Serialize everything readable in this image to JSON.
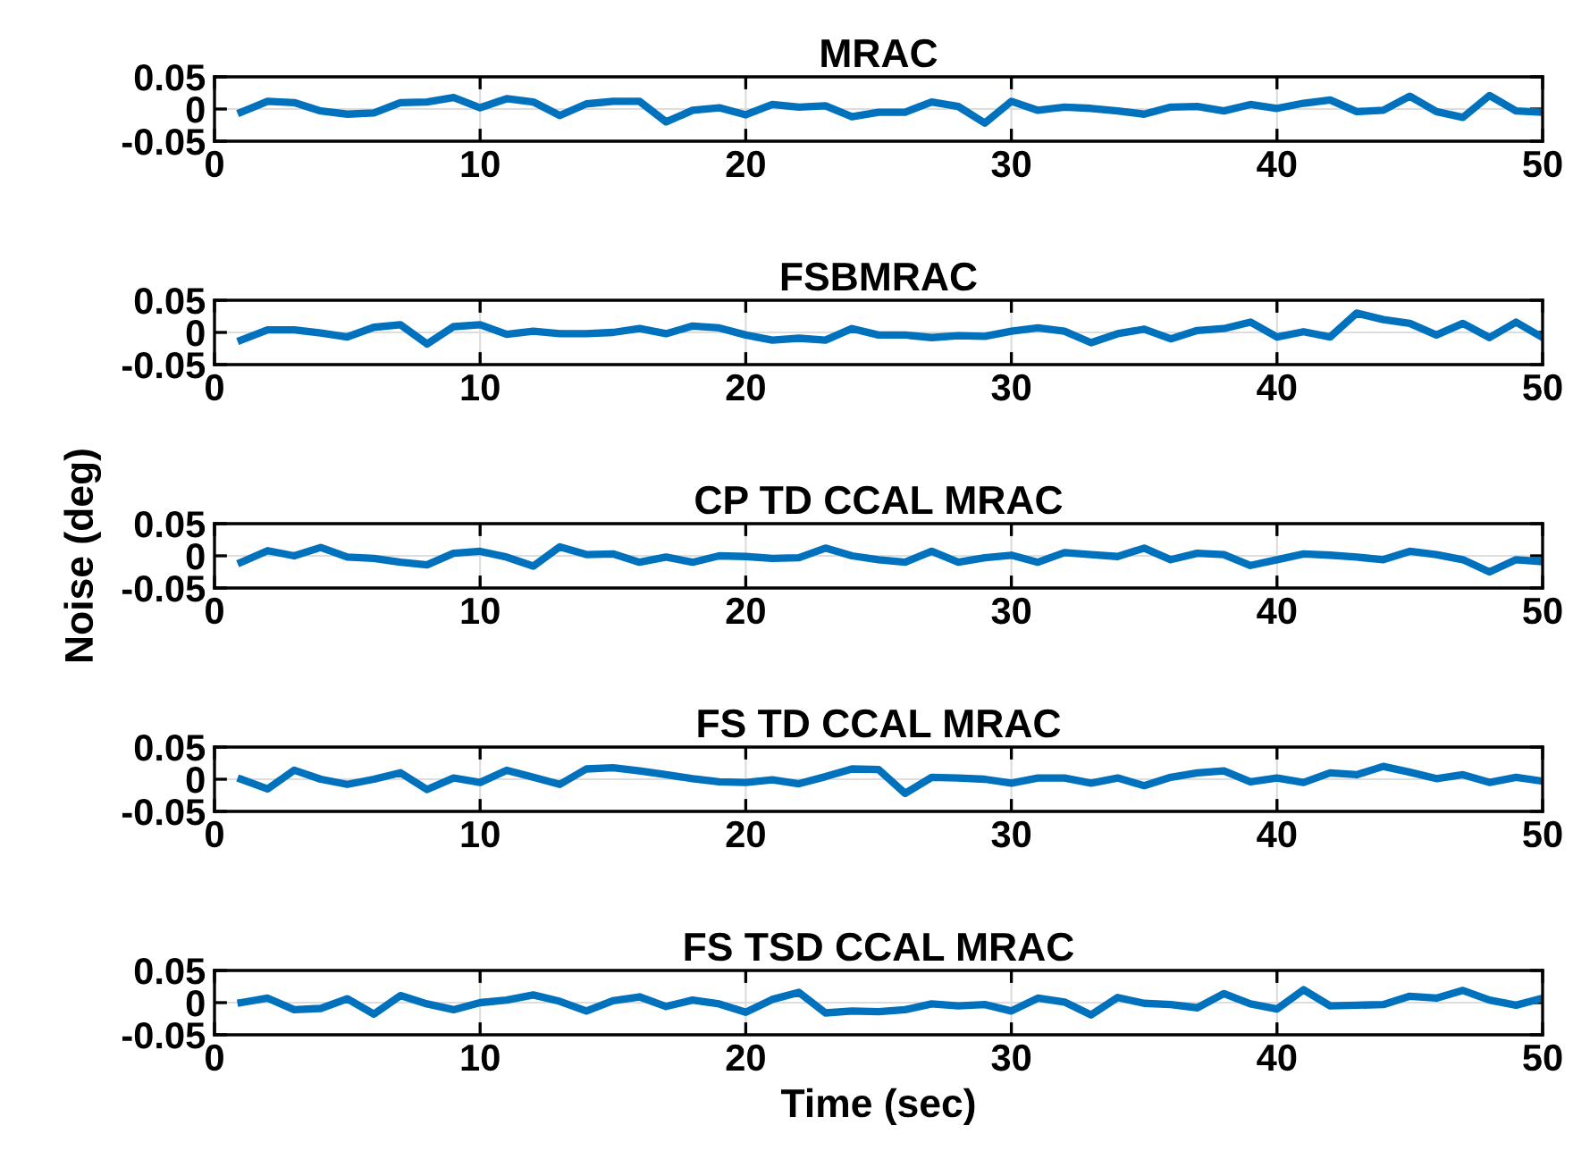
{
  "chart_data": [
    {
      "type": "line",
      "title": "MRAC",
      "x": [
        1,
        2,
        3,
        4,
        5,
        6,
        7,
        8,
        9,
        10,
        11,
        12,
        13,
        14,
        15,
        16,
        17,
        18,
        19,
        20,
        21,
        22,
        23,
        24,
        25,
        26,
        27,
        28,
        29,
        30,
        31,
        32,
        33,
        34,
        35,
        36,
        37,
        38,
        39,
        40,
        41,
        42,
        43,
        44,
        45,
        46,
        47,
        48,
        49,
        50
      ],
      "series": [
        {
          "color": "#0072bd",
          "values": [
            -0.005,
            0.012,
            0.01,
            -0.003,
            -0.008,
            -0.006,
            0.01,
            0.011,
            0.018,
            0.002,
            0.016,
            0.011,
            -0.01,
            0.008,
            0.012,
            0.012,
            -0.02,
            -0.002,
            0.002,
            -0.009,
            0.007,
            0.003,
            0.005,
            -0.012,
            -0.005,
            -0.005,
            0.011,
            0.004,
            -0.022,
            0.012,
            -0.002,
            0.003,
            0.001,
            -0.003,
            -0.008,
            0.003,
            0.004,
            -0.003,
            0.007,
            0.001,
            0.009,
            0.014,
            -0.004,
            -0.002,
            0.02,
            -0.004,
            -0.013,
            0.021,
            -0.003,
            -0.005
          ]
        }
      ],
      "xlim": [
        0,
        50
      ],
      "xticks": [
        0,
        10,
        20,
        30,
        40,
        50
      ],
      "ylim": [
        -0.05,
        0.05
      ],
      "yticks": [
        -0.05,
        0,
        0.05
      ],
      "grid": true,
      "line_style": "solid"
    },
    {
      "type": "line",
      "title": "FSBMRAC",
      "x": [
        1,
        2,
        3,
        4,
        5,
        6,
        7,
        8,
        9,
        10,
        11,
        12,
        13,
        14,
        15,
        16,
        17,
        18,
        19,
        20,
        21,
        22,
        23,
        24,
        25,
        26,
        27,
        28,
        29,
        30,
        31,
        32,
        33,
        34,
        35,
        36,
        37,
        38,
        39,
        40,
        41,
        42,
        43,
        44,
        45,
        46,
        47,
        48,
        49,
        50
      ],
      "series": [
        {
          "color": "#0072bd",
          "values": [
            -0.012,
            0.004,
            0.004,
            -0.001,
            -0.007,
            0.008,
            0.012,
            -0.018,
            0.009,
            0.012,
            -0.003,
            0.002,
            -0.002,
            -0.002,
            0,
            0.006,
            -0.002,
            0.01,
            0.007,
            -0.004,
            -0.012,
            -0.009,
            -0.012,
            0.006,
            -0.004,
            -0.004,
            -0.008,
            -0.005,
            -0.006,
            0.002,
            0.007,
            0.002,
            -0.016,
            -0.002,
            0.005,
            -0.01,
            0.003,
            0.006,
            0.016,
            -0.007,
            0.001,
            -0.007,
            0.03,
            0.02,
            0.014,
            -0.004,
            0.014,
            -0.008,
            0.016,
            -0.008
          ]
        }
      ],
      "xlim": [
        0,
        50
      ],
      "xticks": [
        0,
        10,
        20,
        30,
        40,
        50
      ],
      "ylim": [
        -0.05,
        0.05
      ],
      "yticks": [
        -0.05,
        0,
        0.05
      ],
      "grid": true,
      "line_style": "solid"
    },
    {
      "type": "line",
      "title": "CP TD CCAL MRAC",
      "ylabel": "Noise (deg)",
      "x": [
        1,
        2,
        3,
        4,
        5,
        6,
        7,
        8,
        9,
        10,
        11,
        12,
        13,
        14,
        15,
        16,
        17,
        18,
        19,
        20,
        21,
        22,
        23,
        24,
        25,
        26,
        27,
        28,
        29,
        30,
        31,
        32,
        33,
        34,
        35,
        36,
        37,
        38,
        39,
        40,
        41,
        42,
        43,
        44,
        45,
        46,
        47,
        48,
        49,
        50
      ],
      "series": [
        {
          "color": "#0072bd",
          "values": [
            -0.01,
            0.008,
            0,
            0.013,
            -0.002,
            -0.004,
            -0.01,
            -0.014,
            0.004,
            0.007,
            -0.002,
            -0.016,
            0.014,
            0.002,
            0.003,
            -0.01,
            -0.002,
            -0.01,
            0,
            -0.001,
            -0.004,
            -0.003,
            0.012,
            0,
            -0.006,
            -0.01,
            0.007,
            -0.01,
            -0.003,
            0.001,
            -0.01,
            0.005,
            0.002,
            -0.001,
            0.012,
            -0.006,
            0.004,
            0.002,
            -0.015,
            -0.006,
            0.003,
            0.001,
            -0.002,
            -0.006,
            0.007,
            0.002,
            -0.006,
            -0.025,
            -0.006,
            -0.009
          ]
        }
      ],
      "xlim": [
        0,
        50
      ],
      "xticks": [
        0,
        10,
        20,
        30,
        40,
        50
      ],
      "ylim": [
        -0.05,
        0.05
      ],
      "yticks": [
        -0.05,
        0,
        0.05
      ],
      "grid": true,
      "line_style": "solid"
    },
    {
      "type": "line",
      "title": "FS TD CCAL MRAC",
      "x": [
        1,
        2,
        3,
        4,
        5,
        6,
        7,
        8,
        9,
        10,
        11,
        12,
        13,
        14,
        15,
        16,
        17,
        18,
        19,
        20,
        21,
        22,
        23,
        24,
        25,
        26,
        27,
        28,
        29,
        30,
        31,
        32,
        33,
        34,
        35,
        36,
        37,
        38,
        39,
        40,
        41,
        42,
        43,
        44,
        45,
        46,
        47,
        48,
        49,
        50
      ],
      "series": [
        {
          "color": "#0072bd",
          "values": [
            0,
            -0.015,
            0.014,
            0,
            -0.008,
            0,
            0.01,
            -0.016,
            0.002,
            -0.005,
            0.014,
            0.003,
            -0.008,
            0.016,
            0.018,
            0.013,
            0.007,
            0.001,
            -0.004,
            -0.005,
            -0.001,
            -0.007,
            0.004,
            0.016,
            0.015,
            -0.022,
            0.003,
            0.002,
            0,
            -0.006,
            0.002,
            0.002,
            -0.006,
            0.002,
            -0.01,
            0.003,
            0.01,
            0.013,
            -0.004,
            0.002,
            -0.005,
            0.01,
            0.007,
            0.02,
            0.011,
            0.001,
            0.007,
            -0.005,
            0.003,
            -0.003
          ]
        }
      ],
      "xlim": [
        0,
        50
      ],
      "xticks": [
        0,
        10,
        20,
        30,
        40,
        50
      ],
      "ylim": [
        -0.05,
        0.05
      ],
      "yticks": [
        -0.05,
        0,
        0.05
      ],
      "grid": true,
      "line_style": "solid"
    },
    {
      "type": "line",
      "title": "FS TSD CCAL MRAC",
      "xlabel": "Time (sec)",
      "x": [
        1,
        2,
        3,
        4,
        5,
        6,
        7,
        8,
        9,
        10,
        11,
        12,
        13,
        14,
        15,
        16,
        17,
        18,
        19,
        20,
        21,
        22,
        23,
        24,
        25,
        26,
        27,
        28,
        29,
        30,
        31,
        32,
        33,
        34,
        35,
        36,
        37,
        38,
        39,
        40,
        41,
        42,
        43,
        44,
        45,
        46,
        47,
        48,
        49,
        50
      ],
      "series": [
        {
          "color": "#0072bd",
          "values": [
            0,
            0.007,
            -0.011,
            -0.009,
            0.006,
            -0.018,
            0.011,
            -0.002,
            -0.011,
            0,
            0.004,
            0.012,
            0.002,
            -0.013,
            0.003,
            0.009,
            -0.006,
            0.004,
            -0.002,
            -0.015,
            0.005,
            0.016,
            -0.016,
            -0.013,
            -0.014,
            -0.011,
            -0.002,
            -0.005,
            -0.003,
            -0.013,
            0.007,
            0.001,
            -0.019,
            0.008,
            -0.001,
            -0.003,
            -0.008,
            0.014,
            -0.002,
            -0.01,
            0.02,
            -0.005,
            -0.004,
            -0.003,
            0.01,
            0.007,
            0.019,
            0.004,
            -0.004,
            0.007
          ]
        }
      ],
      "xlim": [
        0,
        50
      ],
      "xticks": [
        0,
        10,
        20,
        30,
        40,
        50
      ],
      "ylim": [
        -0.05,
        0.05
      ],
      "yticks": [
        -0.05,
        0,
        0.05
      ],
      "grid": true,
      "line_style": "solid"
    }
  ]
}
